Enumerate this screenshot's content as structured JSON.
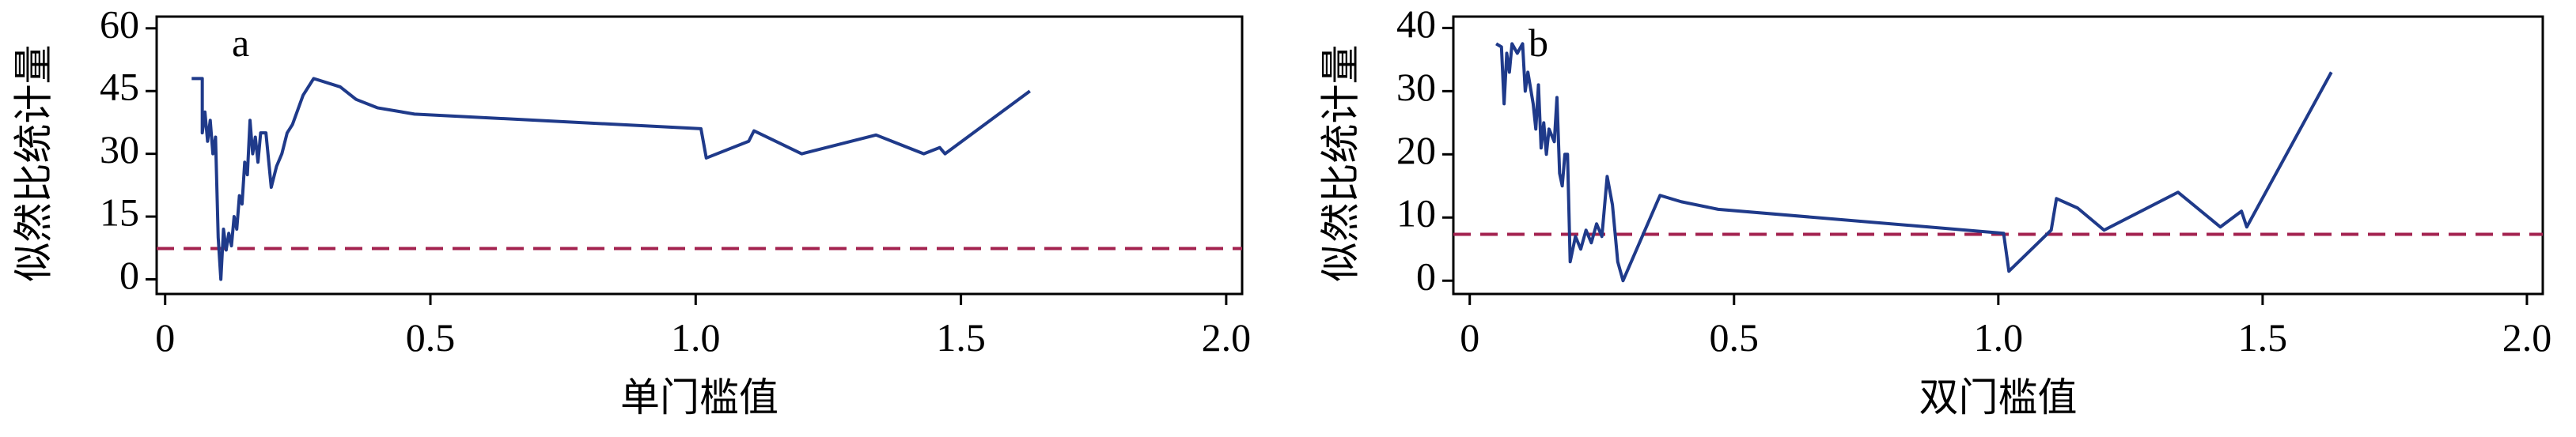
{
  "chart_data": [
    {
      "type": "line",
      "panel_label": "a",
      "xlabel": "单门槛值",
      "ylabel": "似然比统计量",
      "xlim": [
        -0.016,
        2.03
      ],
      "ylim": [
        -3.5,
        62.8
      ],
      "xticks": [
        0,
        0.5,
        {
          "value": 1,
          "label": "1.0"
        },
        1.5,
        {
          "value": 2,
          "label": "2.0"
        }
      ],
      "yticks": [
        0,
        15,
        30,
        45,
        60
      ],
      "x": [
        0.05,
        0.07,
        0.07,
        0.075,
        0.08,
        0.085,
        0.09,
        0.095,
        0.1,
        0.105,
        0.11,
        0.115,
        0.12,
        0.125,
        0.13,
        0.135,
        0.14,
        0.145,
        0.15,
        0.155,
        0.16,
        0.165,
        0.17,
        0.175,
        0.18,
        0.19,
        0.2,
        0.21,
        0.22,
        0.23,
        0.24,
        0.26,
        0.28,
        0.33,
        0.36,
        0.4,
        0.47,
        1.01,
        1.02,
        1.1,
        1.11,
        1.2,
        1.34,
        1.43,
        1.46,
        1.47,
        1.63
      ],
      "series": [
        {
          "color": "#1f3a8a",
          "values": [
            48,
            48,
            35,
            40,
            33,
            38,
            30,
            34,
            10,
            0,
            12,
            7,
            11,
            8,
            15,
            12,
            20,
            18,
            28,
            25,
            38,
            30,
            34,
            28,
            35,
            35,
            22,
            27,
            30,
            35,
            37,
            44,
            48,
            46,
            43,
            41,
            39.5,
            36,
            29,
            33,
            35.5,
            30,
            34.5,
            30,
            31.5,
            30,
            45
          ]
        }
      ],
      "threshold": {
        "value": 7.35,
        "color": "#a3224f",
        "dashed": true
      }
    },
    {
      "type": "line",
      "panel_label": "b",
      "xlabel": "双门槛值",
      "ylabel": "似然比统计量",
      "xlim": [
        -0.031,
        2.03
      ],
      "ylim": [
        -2.1,
        41.8
      ],
      "xticks": [
        0,
        0.5,
        {
          "value": 1,
          "label": "1.0"
        },
        1.5,
        {
          "value": 2,
          "label": "2.0"
        }
      ],
      "yticks": [
        0,
        10,
        20,
        30,
        40
      ],
      "x": [
        0.05,
        0.06,
        0.065,
        0.07,
        0.075,
        0.08,
        0.09,
        0.1,
        0.105,
        0.11,
        0.12,
        0.125,
        0.13,
        0.135,
        0.14,
        0.145,
        0.15,
        0.16,
        0.165,
        0.17,
        0.175,
        0.18,
        0.185,
        0.19,
        0.2,
        0.21,
        0.22,
        0.23,
        0.24,
        0.25,
        0.26,
        0.27,
        0.28,
        0.29,
        0.36,
        0.4,
        0.47,
        1.01,
        1.02,
        1.1,
        1.11,
        1.15,
        1.2,
        1.34,
        1.42,
        1.46,
        1.47,
        1.63
      ],
      "series": [
        {
          "color": "#1f3a8a",
          "values": [
            37.5,
            37,
            28,
            36,
            33,
            37.5,
            36,
            37.5,
            30,
            33,
            28,
            24,
            31,
            21,
            25,
            20,
            24,
            22,
            29,
            17,
            15,
            20,
            20,
            3,
            7,
            5,
            8,
            6,
            9,
            7,
            16.5,
            12,
            3,
            0,
            13.5,
            12.5,
            11.3,
            7.5,
            1.5,
            8,
            13,
            11.5,
            8,
            14,
            8.5,
            11,
            8.5,
            33
          ]
        }
      ],
      "threshold": {
        "value": 7.35,
        "color": "#a3224f",
        "dashed": true
      }
    }
  ]
}
